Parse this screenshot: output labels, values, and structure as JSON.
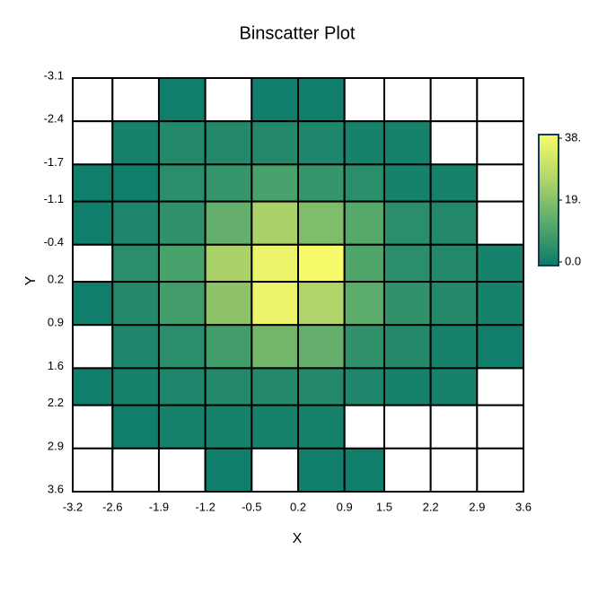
{
  "chart_data": {
    "type": "heatmap",
    "title": "Binscatter Plot",
    "xlabel": "X",
    "ylabel": "Y",
    "xlim": [
      -3.2,
      3.6
    ],
    "xticks": [
      -3.2,
      -2.6,
      -1.9,
      -1.2,
      -0.5,
      0.2,
      0.9,
      1.5,
      2.2,
      2.9,
      3.6
    ],
    "ylim": [
      -3.1,
      3.6
    ],
    "yticks": [
      -3.1,
      -2.4,
      -1.7,
      -1.1,
      -0.4,
      0.2,
      0.9,
      1.6,
      2.2,
      2.9,
      3.6
    ],
    "y_inverted": true,
    "z": [
      [
        null,
        null,
        1,
        null,
        1,
        1,
        null,
        null,
        null,
        null
      ],
      [
        null,
        2,
        4,
        4,
        4,
        3,
        2,
        2,
        null,
        null
      ],
      [
        1,
        1,
        5,
        7,
        10,
        7,
        5,
        2,
        2,
        null
      ],
      [
        1,
        3,
        6,
        14,
        24,
        18,
        12,
        5,
        4,
        null
      ],
      [
        null,
        5,
        10,
        24,
        36,
        38,
        11,
        5,
        4,
        2
      ],
      [
        1,
        4,
        9,
        20,
        36,
        25,
        13,
        6,
        4,
        2
      ],
      [
        null,
        3,
        5,
        9,
        16,
        14,
        6,
        4,
        2,
        1
      ],
      [
        1,
        2,
        3,
        4,
        4,
        4,
        3,
        2,
        2,
        null
      ],
      [
        null,
        1,
        2,
        2,
        2,
        2,
        null,
        null,
        null,
        null
      ],
      [
        null,
        null,
        null,
        1,
        null,
        1,
        1,
        null,
        null,
        null
      ]
    ],
    "zlim": [
      0,
      38
    ],
    "colorbar_ticks": [
      {
        "value": 0,
        "label": "0.0"
      },
      {
        "value": 19,
        "label": "19."
      },
      {
        "value": 38,
        "label": "38."
      }
    ],
    "colorscale": [
      "#0b7a6b",
      "#5aab6b",
      "#b3d56a",
      "#f7fb6a"
    ]
  }
}
